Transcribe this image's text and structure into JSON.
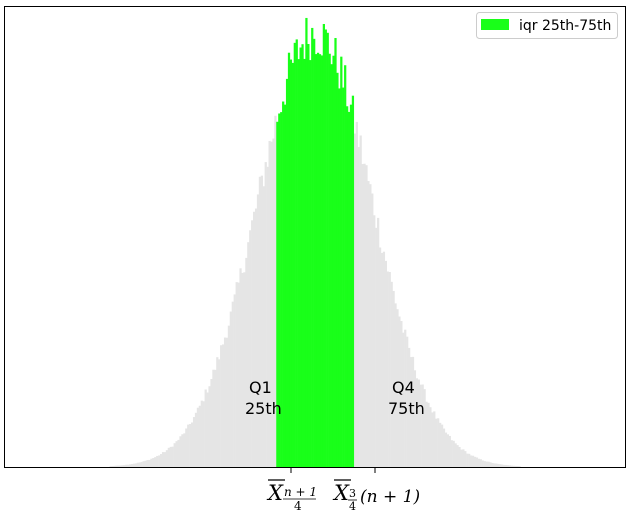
{
  "chart_data": {
    "type": "bar",
    "title": "",
    "xlabel": "",
    "ylabel": "",
    "grid": false,
    "legend_position": "top-right",
    "colors": {
      "background_bars": "#e5e5e5",
      "iqr_bars": "#19ff19",
      "frame": "#000000"
    },
    "x_ticks": [
      {
        "x": -0.4,
        "main": "X",
        "sub": "n + 1",
        "sub2": "4",
        "kind": "lower"
      },
      {
        "x": 0.4,
        "main": "X",
        "sub": "3",
        "sub2": "4",
        "suffix": "(n + 1)",
        "kind": "upper"
      }
    ],
    "annotations": [
      {
        "lines": [
          "Q1",
          "25th"
        ],
        "side": "left"
      },
      {
        "lines": [
          "Q4",
          "75th"
        ],
        "side": "right"
      }
    ],
    "legend": [
      {
        "label": "iqr 25th-75th",
        "color": "#19ff19"
      }
    ],
    "xlim": [
      -3.2,
      3.2
    ],
    "ylim": [
      0,
      1.06
    ],
    "iqr_range": [
      -0.4,
      0.4
    ],
    "histogram": {
      "bin_start": -3.2,
      "bin_width": 0.02,
      "bins": 320,
      "distribution": "normal",
      "mean": 0,
      "sd": 0.6,
      "peak": 1.0
    }
  }
}
